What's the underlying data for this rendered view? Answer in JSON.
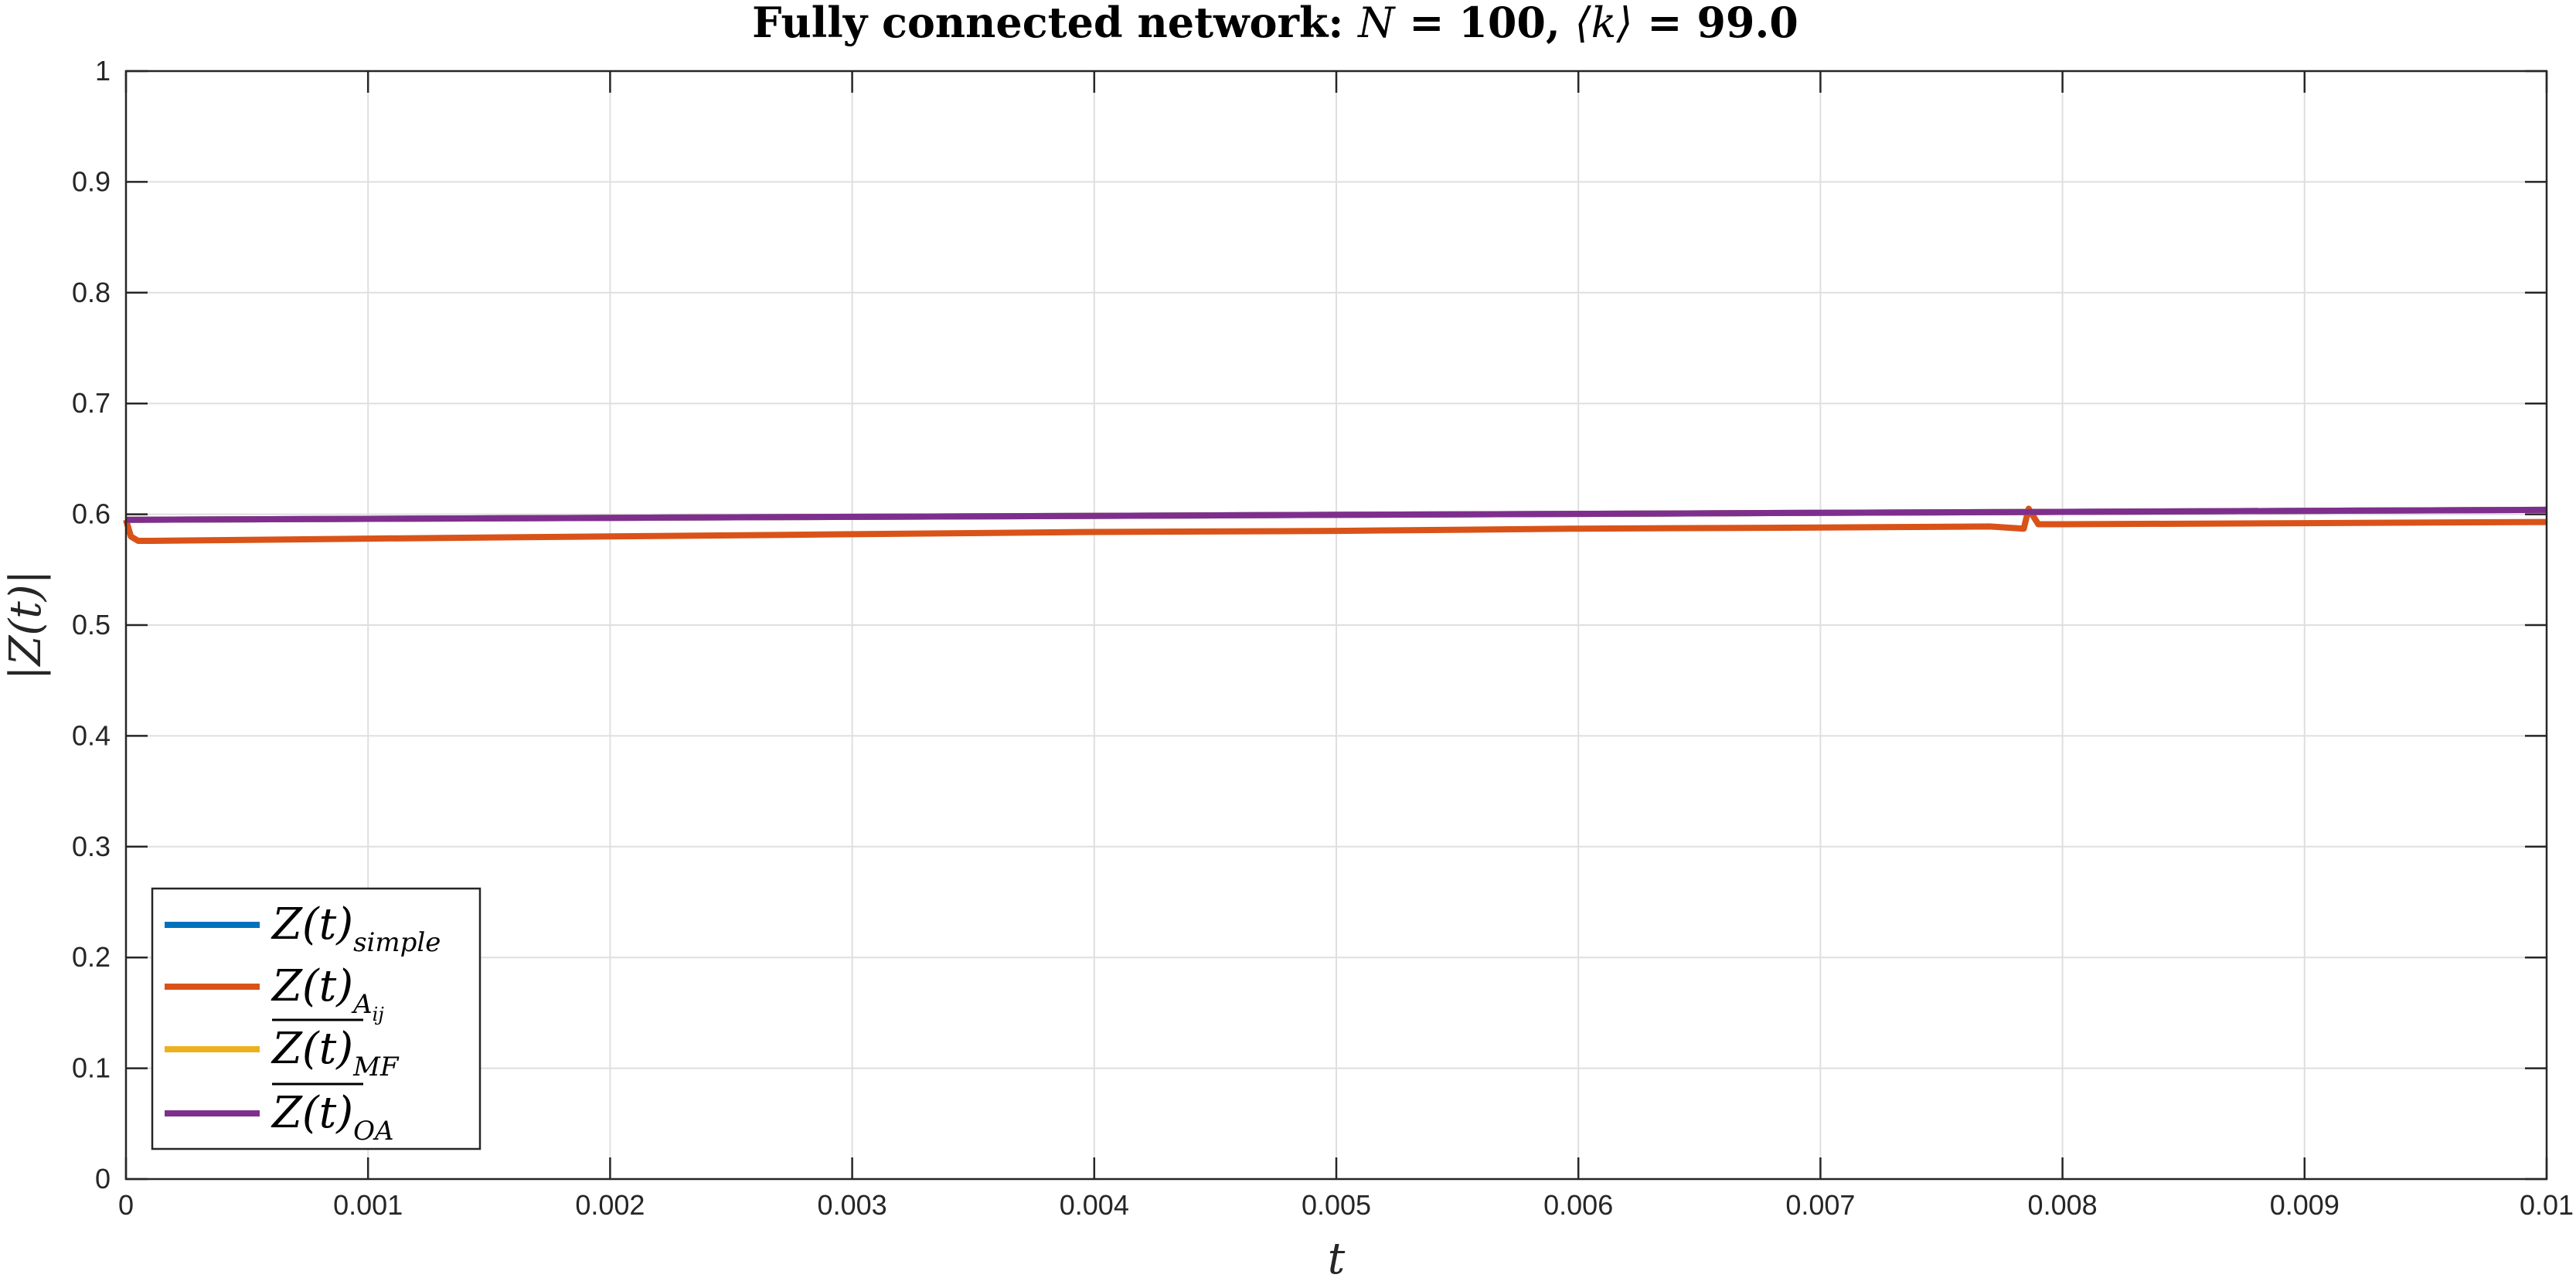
{
  "chart_data": {
    "type": "line",
    "title": {
      "prefix": "Fully connected network: ",
      "n_symbol": "N",
      "n_eq": " = ",
      "n_value": "100",
      "sep": ", ",
      "k_symbol": "⟨k⟩",
      "k_eq": " = ",
      "k_value": "99.0"
    },
    "xlabel": "t",
    "ylabel": "|Z(t)|",
    "xlim": [
      0,
      0.01
    ],
    "ylim": [
      0,
      1
    ],
    "x_ticks": [
      0,
      0.001,
      0.002,
      0.003,
      0.004,
      0.005,
      0.006,
      0.007,
      0.008,
      0.009,
      0.01
    ],
    "x_tick_labels": [
      "0",
      "0.001",
      "0.002",
      "0.003",
      "0.004",
      "0.005",
      "0.006",
      "0.007",
      "0.008",
      "0.009",
      "0.01"
    ],
    "y_ticks": [
      0,
      0.1,
      0.2,
      0.3,
      0.4,
      0.5,
      0.6,
      0.7,
      0.8,
      0.9,
      1
    ],
    "y_tick_labels": [
      "0",
      "0.1",
      "0.2",
      "0.3",
      "0.4",
      "0.5",
      "0.6",
      "0.7",
      "0.8",
      "0.9",
      "1"
    ],
    "grid": true,
    "legend_position": "bottom-left",
    "series": [
      {
        "name": "Z(t)simple",
        "legend_main": "Z(t)",
        "legend_sub": "simple",
        "overline": false,
        "color": "#0072BD",
        "x": [
          0,
          0.01
        ],
        "y": [
          0.595,
          0.604
        ]
      },
      {
        "name": "Z(t)Aij",
        "legend_main": "Z(t)",
        "legend_sub": "A",
        "legend_subsub": "ij",
        "overline": false,
        "color": "#D95319",
        "x": [
          0,
          2e-05,
          5e-05,
          0.0001,
          0.001,
          0.002,
          0.003,
          0.004,
          0.005,
          0.006,
          0.007,
          0.0077,
          0.00784,
          0.00786,
          0.00788,
          0.0079,
          0.008,
          0.009,
          0.01
        ],
        "y": [
          0.595,
          0.58,
          0.576,
          0.576,
          0.578,
          0.58,
          0.582,
          0.584,
          0.585,
          0.587,
          0.588,
          0.589,
          0.587,
          0.605,
          0.598,
          0.591,
          0.591,
          0.592,
          0.593
        ]
      },
      {
        "name": "Z(t)MF",
        "legend_main": "Z(t)",
        "legend_sub": "MF",
        "overline": true,
        "color": "#EDB120",
        "x": [
          0,
          0.01
        ],
        "y": [
          0.595,
          0.604
        ]
      },
      {
        "name": "Z(t)OA",
        "legend_main": "Z(t)",
        "legend_sub": "OA",
        "overline": true,
        "color": "#7E2F8E",
        "x": [
          0,
          0.01
        ],
        "y": [
          0.595,
          0.604
        ]
      }
    ]
  }
}
